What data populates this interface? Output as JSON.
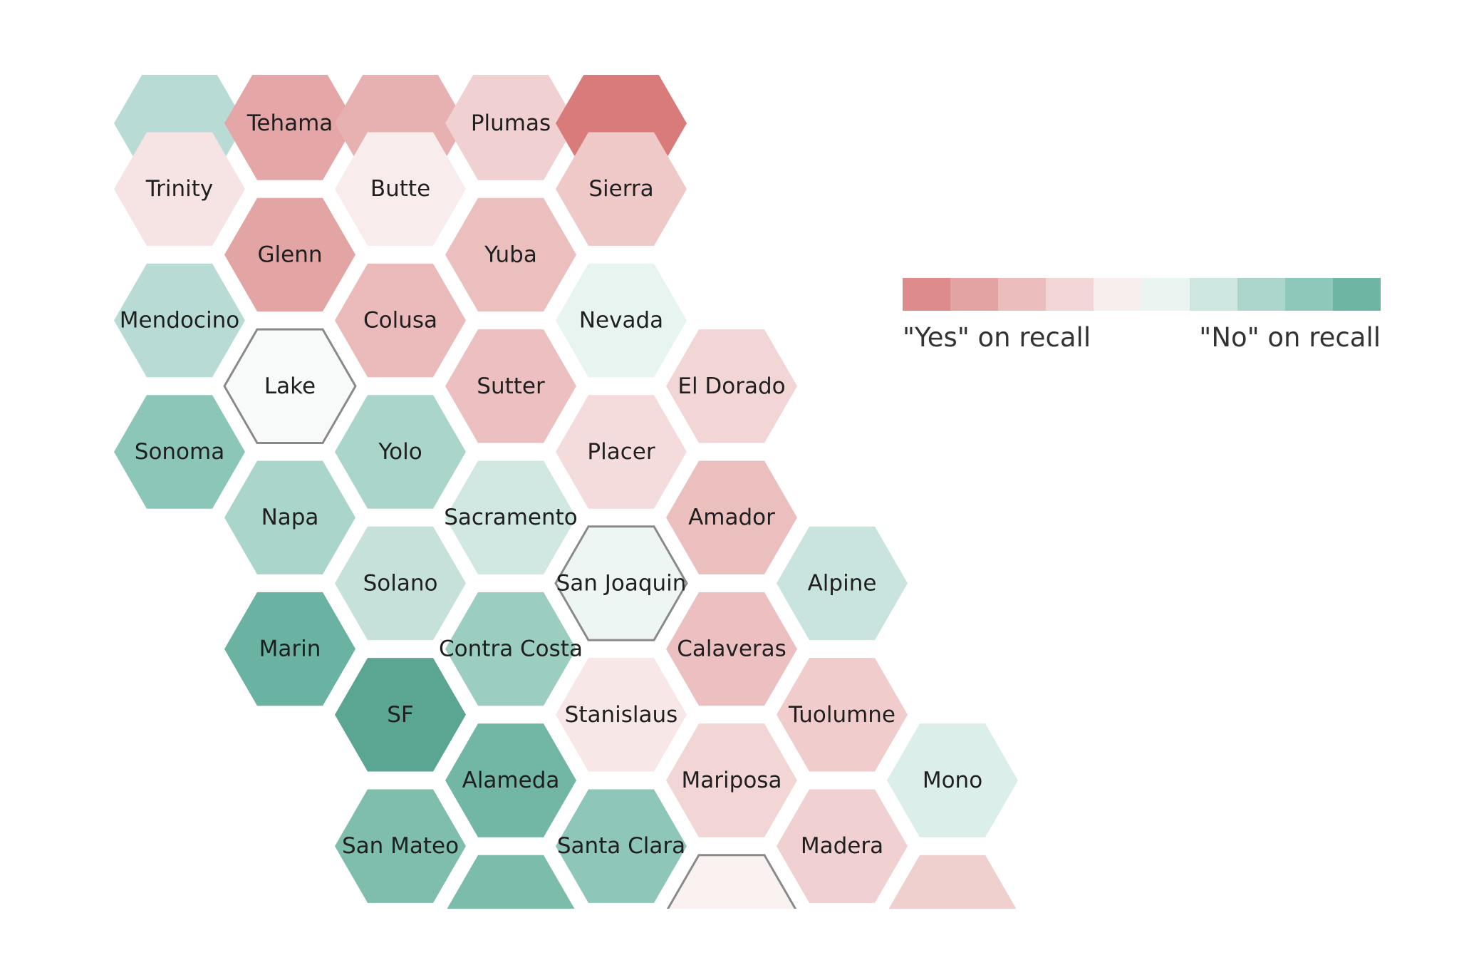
{
  "colors": {
    "background": "#ffffff",
    "highlight_stroke": "#8a8a8a",
    "text": "#1f1f1f"
  },
  "legend": {
    "scale_colors": [
      "#de8b8b",
      "#e4a3a3",
      "#ebbdbd",
      "#f2d6d6",
      "#f9eeee",
      "#eaf5f2",
      "#cde6e0",
      "#acd6cc",
      "#8ec8ba",
      "#6fb5a3"
    ],
    "low_label": "\"Yes\" on recall",
    "high_label": "\"No\" on recall"
  },
  "counties": [
    {
      "name": "",
      "col": 0,
      "row": 0,
      "color": "#b8dcd5"
    },
    {
      "name": "Tehama",
      "col": 1,
      "row": 0,
      "color": "#e4a6a6"
    },
    {
      "name": "",
      "col": 2,
      "row": 0,
      "color": "#e8b1b1"
    },
    {
      "name": "Plumas",
      "col": 3,
      "row": 0,
      "color": "#f0d0d0"
    },
    {
      "name": "",
      "col": 4,
      "row": 0,
      "color": "#d97b7b"
    },
    {
      "name": "Trinity",
      "col": 0,
      "row": 1,
      "color": "#f6e4e4"
    },
    {
      "name": "Butte",
      "col": 2,
      "row": 1,
      "color": "#f8ecec"
    },
    {
      "name": "Sierra",
      "col": 4,
      "row": 1,
      "color": "#efc8c8"
    },
    {
      "name": "Glenn",
      "col": 1,
      "row": 2,
      "color": "#e3a4a4"
    },
    {
      "name": "Yuba",
      "col": 3,
      "row": 2,
      "color": "#ecbfbf"
    },
    {
      "name": "Mendocino",
      "col": 0,
      "row": 3,
      "color": "#b8dcd5"
    },
    {
      "name": "Colusa",
      "col": 2,
      "row": 3,
      "color": "#ebbaba"
    },
    {
      "name": "Nevada",
      "col": 4,
      "row": 3,
      "color": "#e7f4f0"
    },
    {
      "name": "Lake",
      "col": 1,
      "row": 4,
      "color": "#f7faf9",
      "highlight": true
    },
    {
      "name": "Sutter",
      "col": 3,
      "row": 4,
      "color": "#ecc0c0"
    },
    {
      "name": "El Dorado",
      "col": 5,
      "row": 4,
      "color": "#f2d6d6"
    },
    {
      "name": "Sonoma",
      "col": 0,
      "row": 5,
      "color": "#8cc6b9"
    },
    {
      "name": "Yolo",
      "col": 2,
      "row": 5,
      "color": "#a9d5cb"
    },
    {
      "name": "Placer",
      "col": 4,
      "row": 5,
      "color": "#f4dcdc"
    },
    {
      "name": "Napa",
      "col": 1,
      "row": 6,
      "color": "#a9d5cb"
    },
    {
      "name": "Sacramento",
      "col": 3,
      "row": 6,
      "color": "#d0e7e2"
    },
    {
      "name": "Amador",
      "col": 5,
      "row": 6,
      "color": "#ecbfbf"
    },
    {
      "name": "Solano",
      "col": 2,
      "row": 7,
      "color": "#c5e1da"
    },
    {
      "name": "San Joaquin",
      "col": 4,
      "row": 7,
      "color": "#eef6f3",
      "highlight": true
    },
    {
      "name": "Alpine",
      "col": 6,
      "row": 7,
      "color": "#c9e4de"
    },
    {
      "name": "Marin",
      "col": 1,
      "row": 8,
      "color": "#6ab2a2"
    },
    {
      "name": "Contra Costa",
      "col": 3,
      "row": 8,
      "color": "#9bcdc1"
    },
    {
      "name": "Calaveras",
      "col": 5,
      "row": 8,
      "color": "#ecc0c0"
    },
    {
      "name": "SF",
      "col": 2,
      "row": 9,
      "color": "#5aa693"
    },
    {
      "name": "Stanislaus",
      "col": 4,
      "row": 9,
      "color": "#f7e7e7"
    },
    {
      "name": "Tuolumne",
      "col": 6,
      "row": 9,
      "color": "#f0cccc"
    },
    {
      "name": "Alameda",
      "col": 3,
      "row": 10,
      "color": "#72b6a5"
    },
    {
      "name": "Mariposa",
      "col": 5,
      "row": 10,
      "color": "#f2d6d6"
    },
    {
      "name": "Mono",
      "col": 7,
      "row": 10,
      "color": "#dbeeea"
    },
    {
      "name": "San Mateo",
      "col": 2,
      "row": 11,
      "color": "#7fbdad"
    },
    {
      "name": "Santa Clara",
      "col": 4,
      "row": 11,
      "color": "#8ec6b9"
    },
    {
      "name": "Madera",
      "col": 6,
      "row": 11,
      "color": "#f0d0d0"
    },
    {
      "name": "",
      "col": 3,
      "row": 12,
      "color": "#7cbcab"
    },
    {
      "name": "",
      "col": 5,
      "row": 12,
      "color": "#faf1f1",
      "highlight": true
    },
    {
      "name": "",
      "col": 7,
      "row": 12,
      "color": "#f0cfcf"
    }
  ]
}
